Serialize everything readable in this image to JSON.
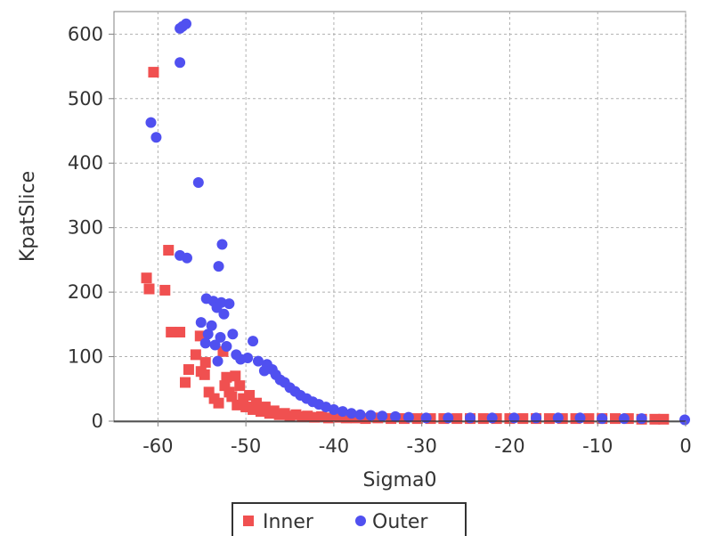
{
  "chart_data": {
    "type": "scatter",
    "title": "",
    "xlabel": "Sigma0",
    "ylabel": "KpatSlice",
    "xlim": [
      -65,
      0
    ],
    "ylim": [
      0,
      635
    ],
    "xticks": [
      -60,
      -50,
      -40,
      -30,
      -20,
      -10,
      0
    ],
    "yticks": [
      0,
      100,
      200,
      300,
      400,
      500,
      600
    ],
    "grid": true,
    "legend_position": "bottom-center",
    "series": [
      {
        "name": "Inner",
        "marker": "square",
        "color": "#f05050",
        "points": [
          [
            -60.5,
            541
          ],
          [
            -58.8,
            265
          ],
          [
            -59.2,
            203
          ],
          [
            -61.3,
            222
          ],
          [
            -61.0,
            205
          ],
          [
            -58.5,
            138
          ],
          [
            -57.5,
            138
          ],
          [
            -55.2,
            132
          ],
          [
            -54.6,
            91
          ],
          [
            -56.5,
            80
          ],
          [
            -55.7,
            103
          ],
          [
            -55.1,
            77
          ],
          [
            -54.7,
            72
          ],
          [
            -56.9,
            60
          ],
          [
            -54.2,
            45
          ],
          [
            -53.6,
            35
          ],
          [
            -53.1,
            28
          ],
          [
            -52.6,
            108
          ],
          [
            -52.2,
            68
          ],
          [
            -52.4,
            55
          ],
          [
            -51.9,
            45
          ],
          [
            -51.6,
            38
          ],
          [
            -51.2,
            70
          ],
          [
            -51.0,
            25
          ],
          [
            -50.7,
            55
          ],
          [
            -50.3,
            35
          ],
          [
            -50.0,
            22
          ],
          [
            -49.6,
            40
          ],
          [
            -49.2,
            18
          ],
          [
            -48.8,
            28
          ],
          [
            -48.3,
            15
          ],
          [
            -47.8,
            22
          ],
          [
            -47.3,
            12
          ],
          [
            -46.8,
            16
          ],
          [
            -46.2,
            10
          ],
          [
            -45.6,
            12
          ],
          [
            -45.0,
            8
          ],
          [
            -44.3,
            10
          ],
          [
            -43.6,
            7
          ],
          [
            -43.0,
            8
          ],
          [
            -42.2,
            6
          ],
          [
            -41.4,
            7
          ],
          [
            -40.6,
            5
          ],
          [
            -39.6,
            6
          ],
          [
            -38.6,
            5
          ],
          [
            -37.5,
            5
          ],
          [
            -36.4,
            4
          ],
          [
            -35.0,
            5
          ],
          [
            -33.5,
            4
          ],
          [
            -32.0,
            4
          ],
          [
            -30.5,
            4
          ],
          [
            -29.0,
            4
          ],
          [
            -27.5,
            4
          ],
          [
            -26.0,
            4
          ],
          [
            -24.5,
            4
          ],
          [
            -23.0,
            4
          ],
          [
            -21.5,
            4
          ],
          [
            -20.0,
            4
          ],
          [
            -18.5,
            4
          ],
          [
            -17.0,
            4
          ],
          [
            -15.5,
            4
          ],
          [
            -14.0,
            4
          ],
          [
            -12.5,
            4
          ],
          [
            -11.0,
            4
          ],
          [
            -9.5,
            4
          ],
          [
            -8.0,
            4
          ],
          [
            -6.5,
            4
          ],
          [
            -5.0,
            3
          ],
          [
            -3.5,
            3
          ],
          [
            -2.5,
            3
          ]
        ]
      },
      {
        "name": "Outer",
        "marker": "circle",
        "color": "#5050f0",
        "points": [
          [
            -56.8,
            616
          ],
          [
            -57.2,
            612
          ],
          [
            -57.5,
            609
          ],
          [
            -57.5,
            556
          ],
          [
            -60.8,
            463
          ],
          [
            -60.2,
            440
          ],
          [
            -55.4,
            370
          ],
          [
            -52.7,
            274
          ],
          [
            -57.5,
            257
          ],
          [
            -56.7,
            253
          ],
          [
            -53.1,
            240
          ],
          [
            -54.5,
            190
          ],
          [
            -53.7,
            186
          ],
          [
            -52.8,
            184
          ],
          [
            -51.9,
            182
          ],
          [
            -53.3,
            176
          ],
          [
            -52.5,
            166
          ],
          [
            -55.1,
            153
          ],
          [
            -53.9,
            148
          ],
          [
            -51.5,
            135
          ],
          [
            -54.3,
            135
          ],
          [
            -52.9,
            130
          ],
          [
            -49.2,
            124
          ],
          [
            -54.6,
            121
          ],
          [
            -53.5,
            118
          ],
          [
            -52.2,
            116
          ],
          [
            -51.1,
            103
          ],
          [
            -49.8,
            98
          ],
          [
            -50.6,
            96
          ],
          [
            -53.2,
            93
          ],
          [
            -48.6,
            93
          ],
          [
            -47.6,
            88
          ],
          [
            -47.0,
            80
          ],
          [
            -46.6,
            72
          ],
          [
            -47.9,
            78
          ],
          [
            -46.1,
            64
          ],
          [
            -45.6,
            60
          ],
          [
            -45.0,
            52
          ],
          [
            -44.4,
            46
          ],
          [
            -43.8,
            40
          ],
          [
            -43.1,
            35
          ],
          [
            -42.4,
            30
          ],
          [
            -41.7,
            26
          ],
          [
            -40.9,
            22
          ],
          [
            -40.0,
            18
          ],
          [
            -39.0,
            15
          ],
          [
            -38.0,
            12
          ],
          [
            -37.0,
            10
          ],
          [
            -35.8,
            9
          ],
          [
            -34.5,
            8
          ],
          [
            -33.0,
            7
          ],
          [
            -31.5,
            6
          ],
          [
            -29.5,
            5
          ],
          [
            -27.0,
            5
          ],
          [
            -24.5,
            5
          ],
          [
            -22.0,
            5
          ],
          [
            -19.5,
            5
          ],
          [
            -17.0,
            5
          ],
          [
            -14.5,
            5
          ],
          [
            -12.0,
            5
          ],
          [
            -9.5,
            4
          ],
          [
            -7.0,
            4
          ],
          [
            -5.0,
            4
          ],
          [
            -0.1,
            2
          ]
        ]
      }
    ]
  }
}
